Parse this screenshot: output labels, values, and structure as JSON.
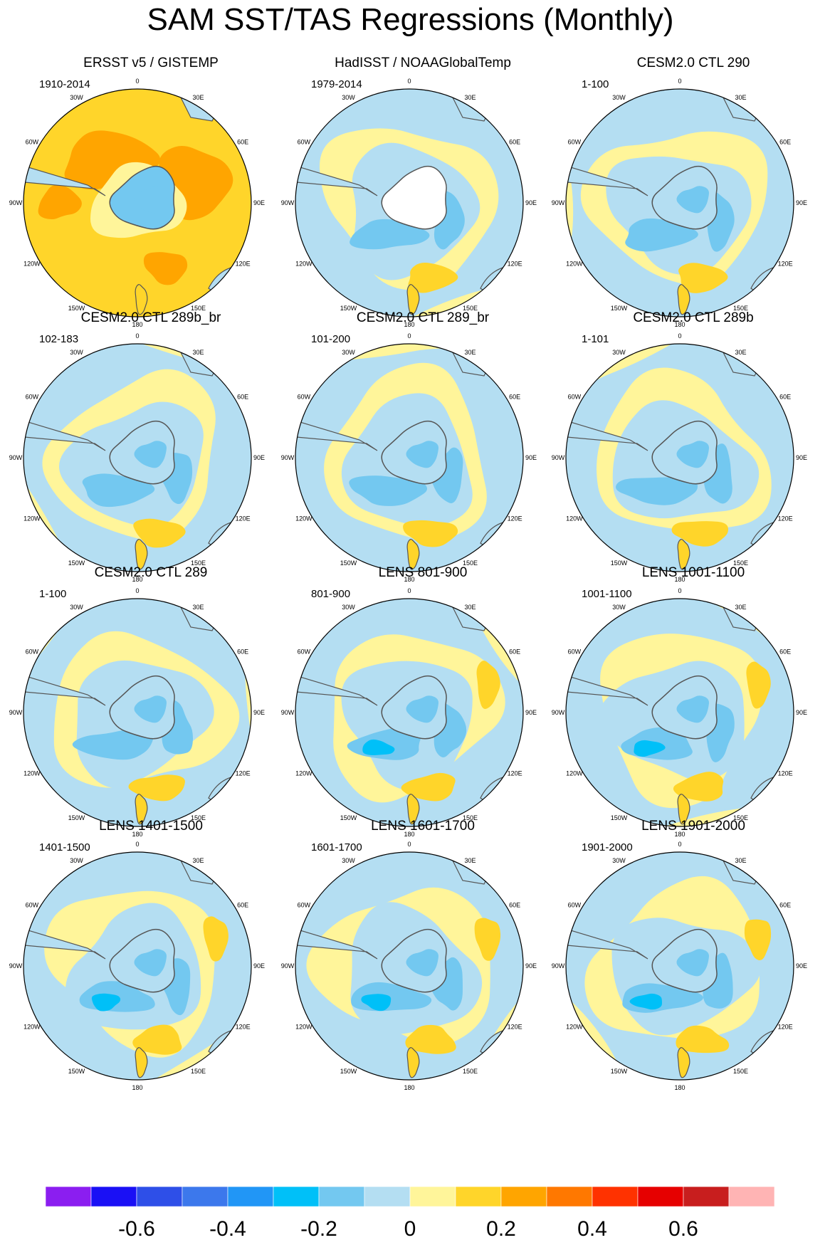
{
  "title": "SAM SST/TAS Regressions (Monthly)",
  "lon_labels": [
    "0",
    "30E",
    "60E",
    "90E",
    "120E",
    "150E",
    "180",
    "150W",
    "120W",
    "90W",
    "60W",
    "30W"
  ],
  "panels": [
    {
      "title": "ERSST v5 / GISTEMP",
      "period": "1910-2014"
    },
    {
      "title": "HadISST / NOAAGlobalTemp",
      "period": "1979-2014"
    },
    {
      "title": "CESM2.0 CTL 290",
      "period": "1-100"
    },
    {
      "title": "CESM2.0 CTL 289b_br",
      "period": "102-183"
    },
    {
      "title": "CESM2.0 CTL 289_br",
      "period": "101-200"
    },
    {
      "title": "CESM2.0 CTL 289b",
      "period": "1-101"
    },
    {
      "title": "CESM2.0 CTL 289",
      "period": "1-100"
    },
    {
      "title": "LENS 801-900",
      "period": "801-900"
    },
    {
      "title": "LENS 1001-1100",
      "period": "1001-1100"
    },
    {
      "title": "LENS 1401-1500",
      "period": "1401-1500"
    },
    {
      "title": "LENS 1601-1700",
      "period": "1601-1700"
    },
    {
      "title": "LENS 1901-2000",
      "period": "1901-2000"
    }
  ],
  "colorbar": {
    "colors": [
      "#8B1EF0",
      "#1A10F5",
      "#2E4FE8",
      "#3C78EC",
      "#2196F6",
      "#00C0F8",
      "#73C8F0",
      "#B4DEF2",
      "#FFF59A",
      "#FFD52A",
      "#FFA500",
      "#FF7800",
      "#FF3200",
      "#E60000",
      "#C81E1E",
      "#FFB4B4"
    ],
    "tick_labels": [
      "-0.6",
      "-0.4",
      "-0.2",
      "0",
      "0.2",
      "0.4",
      "0.6"
    ]
  },
  "palette": {
    "neutral_negative": "#B4DEF2",
    "neutral_positive": "#FFF59A",
    "weak_negative": "#73C8F0",
    "moderate_negative": "#00C0F8",
    "weak_positive": "#FFD52A",
    "moderate_positive": "#FFA500",
    "land_outline": "#555555"
  }
}
